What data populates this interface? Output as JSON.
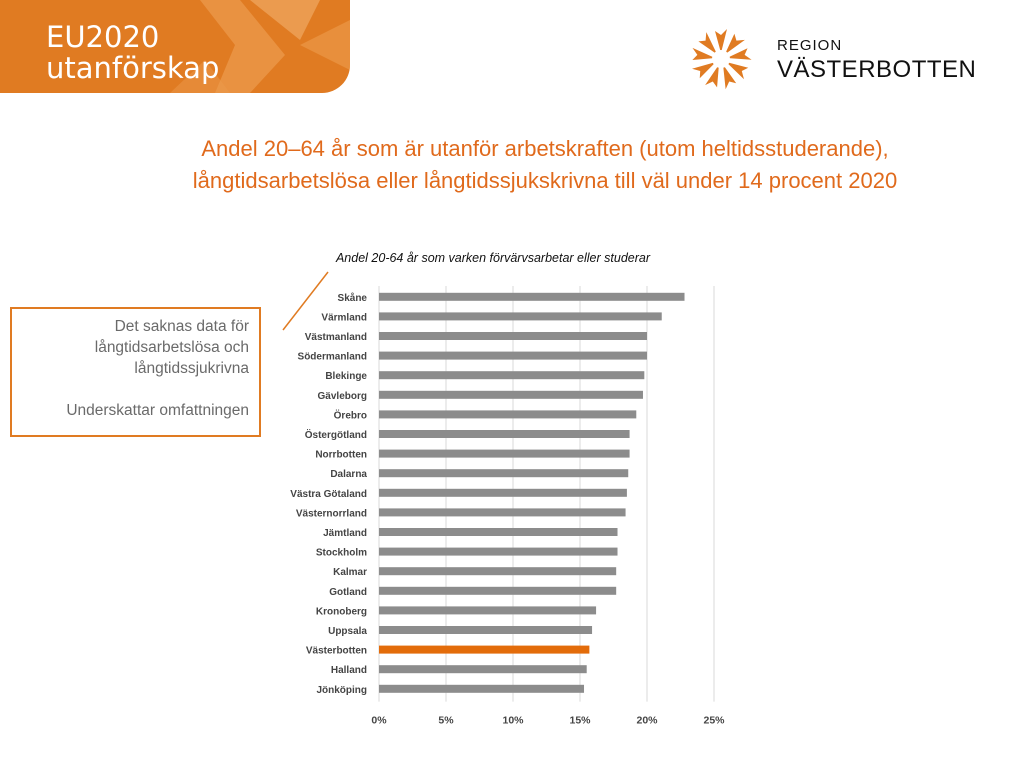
{
  "header": {
    "title_line1": "EU2020",
    "title_line2": "utanförskap"
  },
  "logo": {
    "line1": "REGION",
    "line2": "VÄSTERBOTTEN",
    "icon": "sun-star-logo-icon",
    "color": "#e07b22"
  },
  "main": {
    "title_line1": "Andel 20–64 år som är utanför arbetskraften (utom heltidsstuderande),",
    "title_line2": "långtidsarbetslösa eller långtidssjukskrivna till väl under 14 procent 2020"
  },
  "note": {
    "line1": "Det saknas data för",
    "line2": "långtidsarbetslösa och",
    "line3": "långtidssjukrivna",
    "line4": "Underskattar omfattningen"
  },
  "colors": {
    "accent": "#e07b22",
    "title": "#e06a1c",
    "bar": "#8c8c8c",
    "highlight_bar": "#e36c0a"
  },
  "chart_data": {
    "type": "bar",
    "orientation": "horizontal",
    "title": "Andel 20-64 år som varken förvärvsarbetar eller studerar",
    "categories": [
      "Skåne",
      "Värmland",
      "Västmanland",
      "Södermanland",
      "Blekinge",
      "Gävleborg",
      "Örebro",
      "Östergötland",
      "Norrbotten",
      "Dalarna",
      "Västra Götaland",
      "Västernorrland",
      "Jämtland",
      "Stockholm",
      "Kalmar",
      "Gotland",
      "Kronoberg",
      "Uppsala",
      "Västerbotten",
      "Halland",
      "Jönköping"
    ],
    "values": [
      22.8,
      21.1,
      20.0,
      20.0,
      19.8,
      19.7,
      19.2,
      18.7,
      18.7,
      18.6,
      18.5,
      18.4,
      17.8,
      17.8,
      17.7,
      17.7,
      16.2,
      15.9,
      15.7,
      15.5,
      15.3
    ],
    "highlight": "Västerbotten",
    "xlim": [
      0,
      25
    ],
    "xticks": [
      "0%",
      "5%",
      "10%",
      "15%",
      "20%",
      "25%"
    ],
    "xtick_values": [
      0,
      5,
      10,
      15,
      20,
      25
    ],
    "grid": true,
    "legend": "none"
  }
}
